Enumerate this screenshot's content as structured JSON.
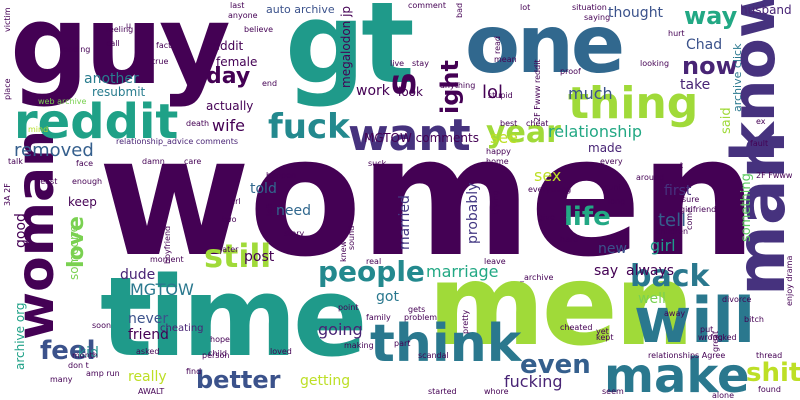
{
  "words": [
    {
      "text": "women",
      "color": "#440154"
    },
    {
      "text": "men",
      "color": "#a0da39"
    },
    {
      "text": "time",
      "color": "#1f9a8a"
    },
    {
      "text": "guy",
      "color": "#440154"
    },
    {
      "text": "gt",
      "color": "#1f9a8a"
    },
    {
      "text": "one",
      "color": "#31688e"
    },
    {
      "text": "man",
      "color": "#46327e"
    },
    {
      "text": "know",
      "color": "#46327e"
    },
    {
      "text": "will",
      "color": "#2a788e"
    },
    {
      "text": "woman",
      "color": "#440154"
    },
    {
      "text": "think",
      "color": "#2a788e"
    },
    {
      "text": "make",
      "color": "#2a788e"
    },
    {
      "text": "reddit",
      "color": "#1fa187"
    },
    {
      "text": "want",
      "color": "#46327e"
    },
    {
      "text": "thing",
      "color": "#a0da39"
    },
    {
      "text": "s",
      "color": "#440154"
    },
    {
      "text": "fuck",
      "color": "#23898e"
    },
    {
      "text": "year",
      "color": "#a0da39"
    },
    {
      "text": "still",
      "color": "#a0da39"
    },
    {
      "text": "people",
      "color": "#23898e"
    },
    {
      "text": "back",
      "color": "#2a788e"
    },
    {
      "text": "shit",
      "color": "#bddf26"
    },
    {
      "text": "feel",
      "color": "#3b528b"
    },
    {
      "text": "better",
      "color": "#3b528b"
    },
    {
      "text": "even",
      "color": "#355f8d"
    },
    {
      "text": "life",
      "color": "#22a884"
    },
    {
      "text": "love",
      "color": "#7ad151"
    },
    {
      "text": "now",
      "color": "#482475"
    },
    {
      "text": "way",
      "color": "#22a884"
    },
    {
      "text": "ight",
      "color": "#440154"
    },
    {
      "text": "day",
      "color": "#440154"
    },
    {
      "text": "removed",
      "color": "#355f8d"
    },
    {
      "text": "relationship",
      "color": "#22a884"
    },
    {
      "text": "tell",
      "color": "#355f8d"
    },
    {
      "text": "MGTOW",
      "color": "#2a788e"
    },
    {
      "text": "marriage",
      "color": "#22a884"
    },
    {
      "text": "going",
      "color": "#482475"
    },
    {
      "text": "fucking",
      "color": "#482475"
    },
    {
      "text": "lol",
      "color": "#440154"
    },
    {
      "text": "much",
      "color": "#3b528b"
    },
    {
      "text": "thought",
      "color": "#3b528b"
    },
    {
      "text": "see",
      "color": "#bddf26"
    },
    {
      "text": "sex",
      "color": "#bddf26"
    },
    {
      "text": "wife",
      "color": "#440154"
    },
    {
      "text": "work",
      "color": "#440154"
    },
    {
      "text": "post",
      "color": "#440154"
    },
    {
      "text": "need",
      "color": "#31688e"
    },
    {
      "text": "told",
      "color": "#31688e"
    },
    {
      "text": "girl",
      "color": "#1f9a8a"
    },
    {
      "text": "well",
      "color": "#7ad151"
    },
    {
      "text": "got",
      "color": "#2a788e"
    },
    {
      "text": "friend",
      "color": "#440154"
    },
    {
      "text": "never",
      "color": "#3b528b"
    },
    {
      "text": "really",
      "color": "#bddf26"
    },
    {
      "text": "getting",
      "color": "#bddf26"
    },
    {
      "text": "kid",
      "color": "#21908d"
    },
    {
      "text": "good",
      "color": "#440154"
    },
    {
      "text": "dude",
      "color": "#482475"
    },
    {
      "text": "say",
      "color": "#440154"
    },
    {
      "text": "always",
      "color": "#440154"
    },
    {
      "text": "new",
      "color": "#3b528b"
    },
    {
      "text": "first",
      "color": "#46327e"
    },
    {
      "text": "married",
      "color": "#443983"
    },
    {
      "text": "probably",
      "color": "#443983"
    },
    {
      "text": "something",
      "color": "#5ec962"
    },
    {
      "text": "said",
      "color": "#a0da39"
    },
    {
      "text": "Chad",
      "color": "#3b528b"
    },
    {
      "text": "take",
      "color": "#482475"
    },
    {
      "text": "made",
      "color": "#482475"
    },
    {
      "text": "another",
      "color": "#287c8e"
    },
    {
      "text": "resubmit",
      "color": "#287c8e"
    },
    {
      "text": "ceddit",
      "color": "#440154"
    },
    {
      "text": "female",
      "color": "#440154"
    },
    {
      "text": "actually",
      "color": "#440154"
    },
    {
      "text": "megalodon jp",
      "color": "#440154"
    },
    {
      "text": "MGTOW comments",
      "color": "#440154"
    },
    {
      "text": "keep",
      "color": "#440154"
    },
    {
      "text": "someone",
      "color": "#7ad151"
    },
    {
      "text": "archive org",
      "color": "#1fa187"
    },
    {
      "text": "archive click",
      "color": "#2a788e"
    },
    {
      "text": "auto archive",
      "color": "#3b528b"
    },
    {
      "text": "husband",
      "color": "#482475"
    },
    {
      "text": "look",
      "color": "#440154"
    },
    {
      "text": "cheating",
      "color": "#482475"
    },
    {
      "text": "relationship_advice comments",
      "color": "#482475"
    },
    {
      "text": "web archive",
      "color": "#7ad151"
    },
    {
      "text": "mind",
      "color": "#b5de2b"
    },
    {
      "text": "feeling",
      "color": "#440154"
    },
    {
      "text": "last",
      "color": "#440154"
    },
    {
      "text": "anyone",
      "color": "#440154"
    },
    {
      "text": "believe",
      "color": "#440154"
    },
    {
      "text": "fact",
      "color": "#440154"
    },
    {
      "text": "true",
      "color": "#440154"
    },
    {
      "text": "reading",
      "color": "#440154"
    },
    {
      "text": "call",
      "color": "#440154"
    },
    {
      "text": "death",
      "color": "#440154"
    },
    {
      "text": "care",
      "color": "#440154"
    },
    {
      "text": "damn",
      "color": "#440154"
    },
    {
      "text": "face",
      "color": "#440154"
    },
    {
      "text": "talk",
      "color": "#440154"
    },
    {
      "text": "least",
      "color": "#440154"
    },
    {
      "text": "enough",
      "color": "#440154"
    },
    {
      "text": "place",
      "color": "#440154"
    },
    {
      "text": "victim",
      "color": "#440154"
    },
    {
      "text": "2F Fwww reddit",
      "color": "#440154"
    },
    {
      "text": "2F Fwww",
      "color": "#440154"
    },
    {
      "text": "situation",
      "color": "#440154"
    },
    {
      "text": "saying",
      "color": "#440154"
    },
    {
      "text": "stupid",
      "color": "#440154"
    },
    {
      "text": "proof",
      "color": "#440154"
    },
    {
      "text": "looking",
      "color": "#440154"
    },
    {
      "text": "hurt",
      "color": "#440154"
    },
    {
      "text": "mean",
      "color": "#440154"
    },
    {
      "text": "anything",
      "color": "#440154"
    },
    {
      "text": "best",
      "color": "#440154"
    },
    {
      "text": "cheat",
      "color": "#440154"
    },
    {
      "text": "happy",
      "color": "#440154"
    },
    {
      "text": "home",
      "color": "#440154"
    },
    {
      "text": "every",
      "color": "#440154"
    },
    {
      "text": "cunt",
      "color": "#440154"
    },
    {
      "text": "long",
      "color": "#440154"
    },
    {
      "text": "around",
      "color": "#440154"
    },
    {
      "text": "sure",
      "color": "#440154"
    },
    {
      "text": "girlfriend",
      "color": "#440154"
    },
    {
      "text": "children",
      "color": "#440154"
    },
    {
      "text": "give",
      "color": "#440154"
    },
    {
      "text": "hard",
      "color": "#440154"
    },
    {
      "text": "everything",
      "color": "#440154"
    },
    {
      "text": "trying",
      "color": "#440154"
    },
    {
      "text": "_archive",
      "color": "#440154"
    },
    {
      "text": "leave",
      "color": "#440154"
    },
    {
      "text": "real",
      "color": "#440154"
    },
    {
      "text": "sound",
      "color": "#440154"
    },
    {
      "text": "story",
      "color": "#440154"
    },
    {
      "text": "url",
      "color": "#440154"
    },
    {
      "text": "two",
      "color": "#440154"
    },
    {
      "text": "left",
      "color": "#440154"
    },
    {
      "text": "happen",
      "color": "#440154"
    },
    {
      "text": "boyfriend",
      "color": "#440154"
    },
    {
      "text": "moment",
      "color": "#440154"
    },
    {
      "text": "later",
      "color": "#440154"
    },
    {
      "text": "point",
      "color": "#440154"
    },
    {
      "text": "gets",
      "color": "#440154"
    },
    {
      "text": "family",
      "color": "#440154"
    },
    {
      "text": "problem",
      "color": "#440154"
    },
    {
      "text": "divorce",
      "color": "#440154"
    },
    {
      "text": "enjoy drama",
      "color": "#440154"
    },
    {
      "text": "away",
      "color": "#440154"
    },
    {
      "text": "put",
      "color": "#440154"
    },
    {
      "text": "wrong",
      "color": "#440154"
    },
    {
      "text": "great",
      "color": "#440154"
    },
    {
      "text": "bitch",
      "color": "#440154"
    },
    {
      "text": "fucked",
      "color": "#440154"
    },
    {
      "text": "thread",
      "color": "#440154"
    },
    {
      "text": "relationships Agree",
      "color": "#440154"
    },
    {
      "text": "alone",
      "color": "#440154"
    },
    {
      "text": "found",
      "color": "#440154"
    },
    {
      "text": "kept",
      "color": "#440154"
    },
    {
      "text": "yet",
      "color": "#440154"
    },
    {
      "text": "cheated",
      "color": "#440154"
    },
    {
      "text": "scandal",
      "color": "#440154"
    },
    {
      "text": "started",
      "color": "#440154"
    },
    {
      "text": "whore",
      "color": "#440154"
    },
    {
      "text": "seem",
      "color": "#440154"
    },
    {
      "text": "pretty",
      "color": "#440154"
    },
    {
      "text": "part",
      "color": "#440154"
    },
    {
      "text": "making",
      "color": "#440154"
    },
    {
      "text": "loved",
      "color": "#440154"
    },
    {
      "text": "person",
      "color": "#440154"
    },
    {
      "text": "hope",
      "color": "#440154"
    },
    {
      "text": "child",
      "color": "#440154"
    },
    {
      "text": "find",
      "color": "#440154"
    },
    {
      "text": "asked",
      "color": "#440154"
    },
    {
      "text": "month",
      "color": "#440154"
    },
    {
      "text": "amp run",
      "color": "#440154"
    },
    {
      "text": "soon",
      "color": "#440154"
    },
    {
      "text": "don t",
      "color": "#440154"
    },
    {
      "text": "AWALT",
      "color": "#440154"
    },
    {
      "text": "many",
      "color": "#440154"
    },
    {
      "text": "3A 2F",
      "color": "#440154"
    },
    {
      "text": "end",
      "color": "#440154"
    },
    {
      "text": "u",
      "color": "#440154"
    },
    {
      "text": "live",
      "color": "#440154"
    },
    {
      "text": "stay",
      "color": "#440154"
    },
    {
      "text": "lot",
      "color": "#440154"
    },
    {
      "text": "bad",
      "color": "#440154"
    },
    {
      "text": "read",
      "color": "#440154"
    },
    {
      "text": "comment",
      "color": "#440154"
    },
    {
      "text": "ex",
      "color": "#440154"
    },
    {
      "text": "fault",
      "color": "#440154"
    },
    {
      "text": "suck",
      "color": "#440154"
    },
    {
      "text": "knew",
      "color": "#440154"
    },
    {
      "text": "t",
      "color": "#440154"
    },
    {
      "text": "come",
      "color": "#440154"
    }
  ]
}
